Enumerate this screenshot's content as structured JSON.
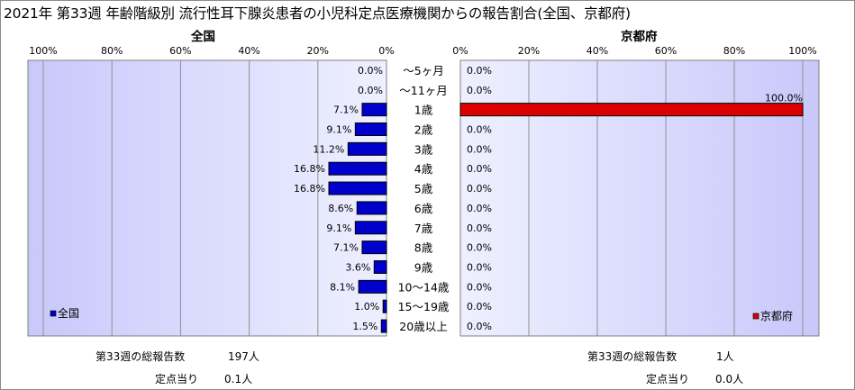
{
  "title": "2021年 第33週 年齢階級別 流行性耳下腺炎患者の小児科定点医療機関からの報告割合(全国、京都府)",
  "colors": {
    "plot_bg": "#ccccff",
    "national_bar": "#0000cc",
    "kyoto_bar": "#dd0000",
    "bar_border": "#000000"
  },
  "chart_data": [
    {
      "type": "bar",
      "orientation": "horizontal",
      "direction": "right-to-left",
      "title": "全国",
      "legend": {
        "label": "全国",
        "position": "bottom-left"
      },
      "xlim": [
        0,
        100
      ],
      "x_ticks": [
        "100%",
        "80%",
        "60%",
        "40%",
        "20%",
        "0%"
      ],
      "grid": true,
      "categories": [
        "～5ヶ月",
        "～11ヶ月",
        "1歳",
        "2歳",
        "3歳",
        "4歳",
        "5歳",
        "6歳",
        "7歳",
        "8歳",
        "9歳",
        "10～14歳",
        "15～19歳",
        "20歳以上"
      ],
      "values": [
        0.0,
        0.0,
        7.1,
        9.1,
        11.2,
        16.8,
        16.8,
        8.6,
        9.1,
        7.1,
        3.6,
        8.1,
        1.0,
        1.5
      ],
      "labels": [
        "0.0%",
        "0.0%",
        "7.1%",
        "9.1%",
        "11.2%",
        "16.8%",
        "16.8%",
        "8.6%",
        "9.1%",
        "7.1%",
        "3.6%",
        "8.1%",
        "1.0%",
        "1.5%"
      ]
    },
    {
      "type": "bar",
      "orientation": "horizontal",
      "direction": "left-to-right",
      "title": "京都府",
      "legend": {
        "label": "京都府",
        "position": "bottom-right"
      },
      "xlim": [
        0,
        100
      ],
      "x_ticks": [
        "0%",
        "20%",
        "40%",
        "60%",
        "80%",
        "100%"
      ],
      "grid": true,
      "categories": [
        "～5ヶ月",
        "～11ヶ月",
        "1歳",
        "2歳",
        "3歳",
        "4歳",
        "5歳",
        "6歳",
        "7歳",
        "8歳",
        "9歳",
        "10～14歳",
        "15～19歳",
        "20歳以上"
      ],
      "values": [
        0.0,
        0.0,
        100.0,
        0.0,
        0.0,
        0.0,
        0.0,
        0.0,
        0.0,
        0.0,
        0.0,
        0.0,
        0.0,
        0.0
      ],
      "labels": [
        "0.0%",
        "0.0%",
        "100.0%",
        "0.0%",
        "0.0%",
        "0.0%",
        "0.0%",
        "0.0%",
        "0.0%",
        "0.0%",
        "0.0%",
        "0.0%",
        "0.0%",
        "0.0%"
      ]
    }
  ],
  "summary": {
    "national": {
      "total_label": "第33週の総報告数",
      "total_value": "197人",
      "per_label": "定点当り",
      "per_value": "0.1人"
    },
    "kyoto": {
      "total_label": "第33週の総報告数",
      "total_value": "1人",
      "per_label": "定点当り",
      "per_value": "0.0人"
    }
  }
}
